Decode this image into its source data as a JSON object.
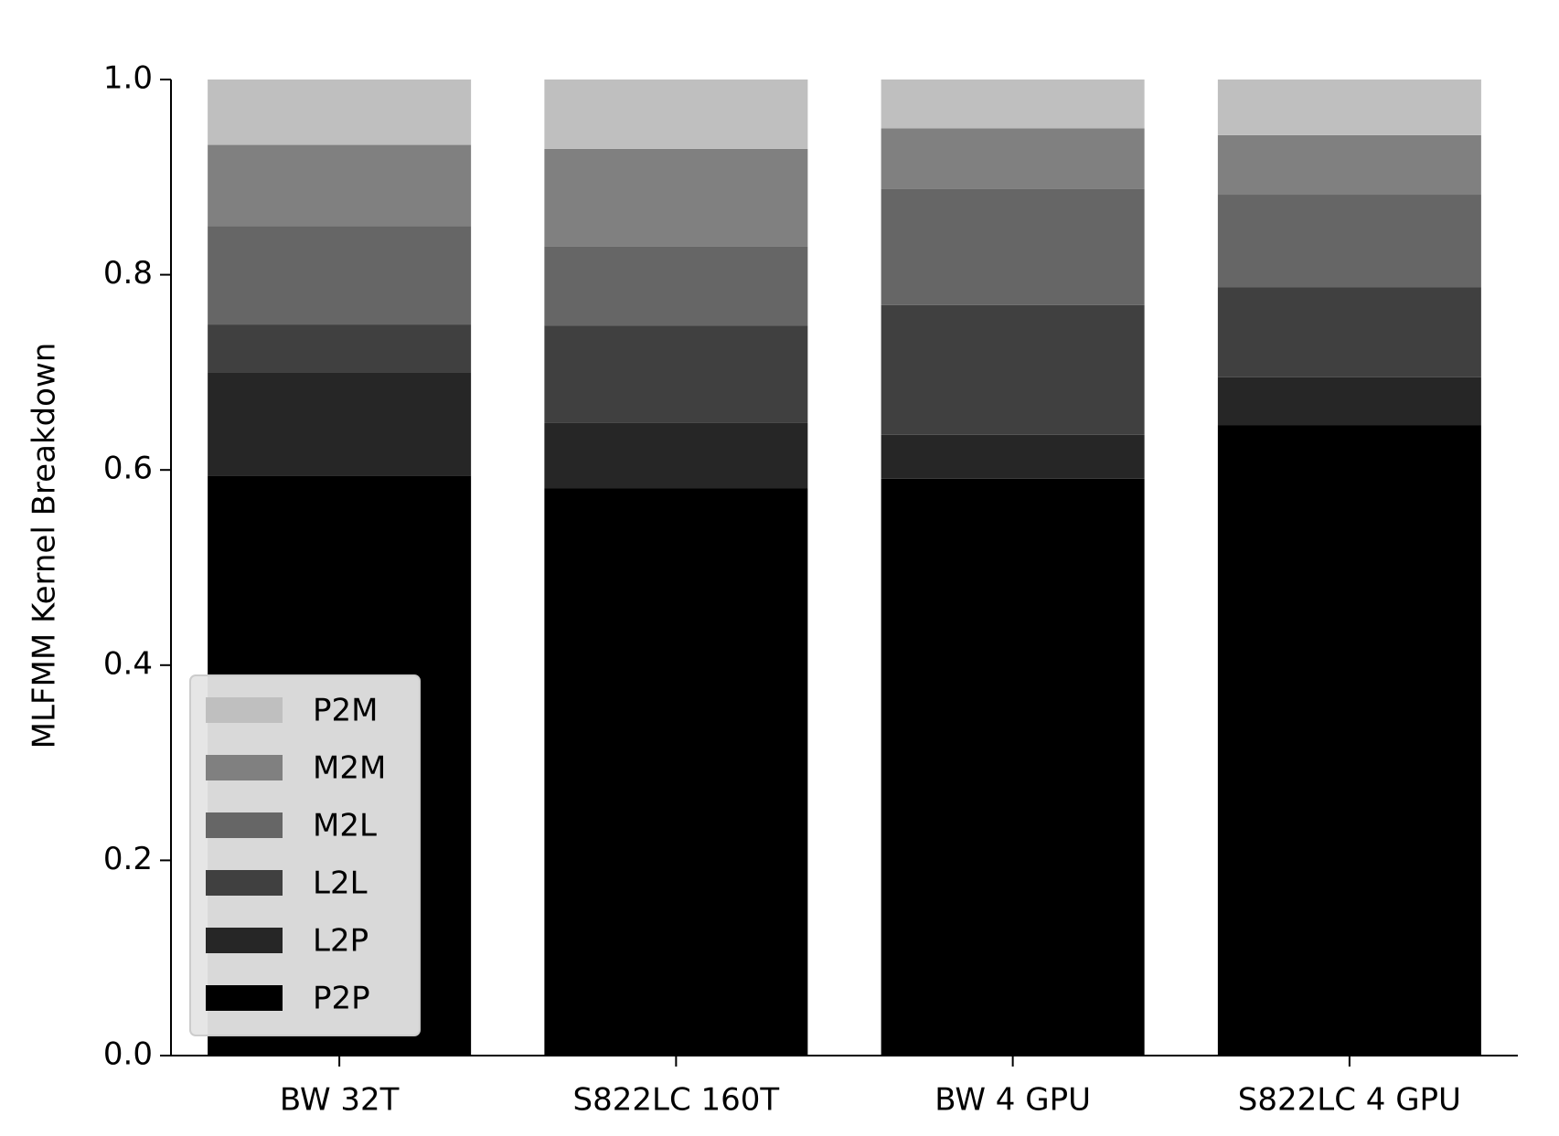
{
  "chart_data": {
    "type": "stacked_bar",
    "y_label": "MLFMM Kernel Breakdown",
    "categories": [
      "BW 32T",
      "S822LC 160T",
      "BW 4 GPU",
      "S822LC 4 GPU"
    ],
    "series": [
      {
        "name": "P2P",
        "color": "#000000",
        "values": [
          0.594,
          0.581,
          0.591,
          0.646
        ]
      },
      {
        "name": "L2P",
        "color": "#262626",
        "values": [
          0.106,
          0.067,
          0.045,
          0.049
        ]
      },
      {
        "name": "L2L",
        "color": "#404040",
        "values": [
          0.049,
          0.1,
          0.133,
          0.092
        ]
      },
      {
        "name": "M2L",
        "color": "#666666",
        "values": [
          0.101,
          0.081,
          0.119,
          0.095
        ]
      },
      {
        "name": "M2M",
        "color": "#808080",
        "values": [
          0.083,
          0.1,
          0.062,
          0.061
        ]
      },
      {
        "name": "P2M",
        "color": "#bfbfbf",
        "values": [
          0.067,
          0.071,
          0.05,
          0.057
        ]
      }
    ],
    "ylim": [
      0,
      1
    ],
    "yticks": [
      {
        "value": 0,
        "label": "0.0"
      },
      0.2,
      0.4,
      0.6,
      0.8,
      {
        "value": 1,
        "label": "1.0"
      }
    ],
    "legend": "lower left"
  }
}
